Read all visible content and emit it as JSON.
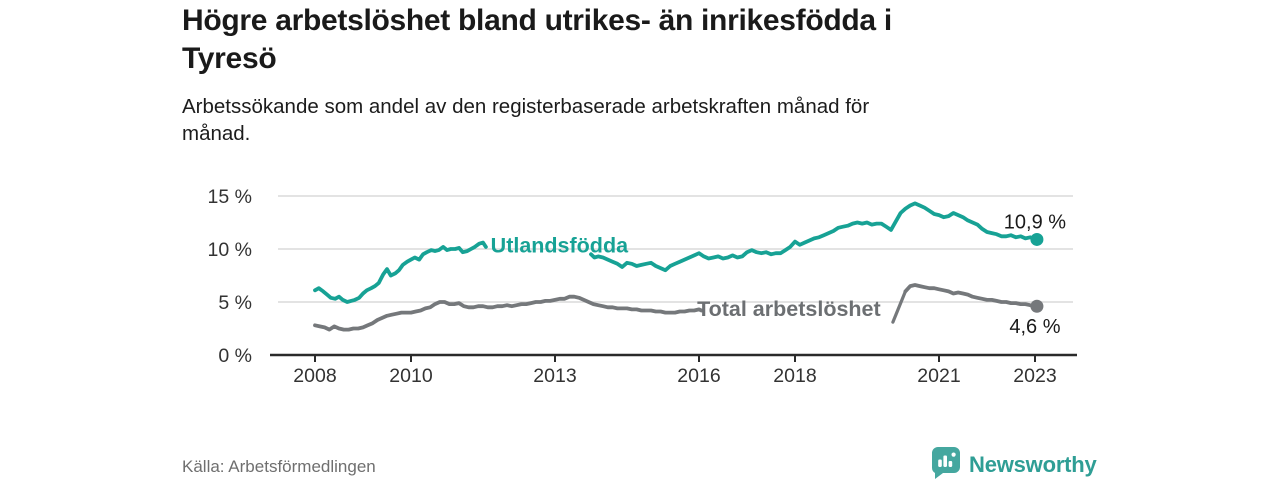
{
  "header": {
    "title": "Högre arbetslöshet bland utrikes- än inrikesfödda i\nTyresö",
    "subtitle": "Arbetssökande som andel av den registerbaserade arbetskraften månad för\nmånad."
  },
  "footer": {
    "source": "Källa: Arbetsförmedlingen",
    "brand_name": "Newsworthy",
    "brand_icon": "newsworthy-speech-bubble-bar-chart-icon"
  },
  "colors": {
    "accent_teal": "#17a295",
    "line_gray": "#75787b",
    "series_label_gray": "#6c6f72",
    "grid": "#dadada",
    "axis": "#2a2a2a",
    "tick_text": "#333333",
    "annotation_text": "#1a1a1a",
    "brand_teal": "#2f9e95",
    "brand_icon_teal": "#45a79f"
  },
  "chart_data": {
    "type": "line",
    "title": "Högre arbetslöshet bland utrikes- än inrikesfödda i Tyresö",
    "xlabel": "",
    "ylabel": "Arbetssökande som andel av den registerbaserade arbetskraften",
    "x_axis": {
      "tick_years": [
        2008,
        2010,
        2013,
        2016,
        2018,
        2021,
        2023
      ],
      "range": [
        2007.6,
        2023.9
      ]
    },
    "y_axis": {
      "tick_labels": [
        "0 %",
        "5 %",
        "10 %",
        "15 %"
      ],
      "tick_values": [
        0,
        5,
        10,
        15
      ],
      "range": [
        0,
        16.5
      ],
      "grid": true
    },
    "legend_position": "inline-labels-on-lines",
    "series": [
      {
        "name": "Utlandsfödda",
        "color": "#17a295",
        "end_label": "10,9 %",
        "end_value": 10.9,
        "label_at": {
          "year": 2011.66,
          "value": 10.35,
          "anchor": "start"
        },
        "label_connector": [],
        "segments": [
          [
            [
              2008.0,
              6.1
            ],
            [
              2008.08,
              6.3
            ],
            [
              2008.17,
              6.0
            ],
            [
              2008.25,
              5.7
            ],
            [
              2008.33,
              5.4
            ],
            [
              2008.42,
              5.3
            ],
            [
              2008.5,
              5.5
            ],
            [
              2008.58,
              5.2
            ],
            [
              2008.67,
              5.0
            ],
            [
              2008.75,
              5.1
            ],
            [
              2008.83,
              5.2
            ],
            [
              2008.92,
              5.4
            ],
            [
              2009.0,
              5.8
            ],
            [
              2009.08,
              6.1
            ],
            [
              2009.17,
              6.3
            ],
            [
              2009.25,
              6.5
            ],
            [
              2009.33,
              6.8
            ],
            [
              2009.42,
              7.6
            ],
            [
              2009.5,
              8.1
            ],
            [
              2009.58,
              7.5
            ],
            [
              2009.67,
              7.7
            ],
            [
              2009.75,
              8.0
            ],
            [
              2009.83,
              8.5
            ],
            [
              2009.92,
              8.8
            ],
            [
              2010.0,
              9.0
            ],
            [
              2010.08,
              9.2
            ],
            [
              2010.17,
              9.0
            ],
            [
              2010.25,
              9.5
            ],
            [
              2010.33,
              9.7
            ],
            [
              2010.42,
              9.9
            ],
            [
              2010.5,
              9.8
            ],
            [
              2010.58,
              9.9
            ],
            [
              2010.67,
              10.2
            ],
            [
              2010.75,
              9.9
            ],
            [
              2010.83,
              10.0
            ],
            [
              2010.92,
              10.0
            ],
            [
              2011.0,
              10.1
            ],
            [
              2011.08,
              9.7
            ],
            [
              2011.17,
              9.8
            ],
            [
              2011.25,
              10.0
            ],
            [
              2011.33,
              10.2
            ],
            [
              2011.42,
              10.5
            ],
            [
              2011.5,
              10.6
            ],
            [
              2011.56,
              10.2
            ]
          ],
          [
            [
              2013.75,
              9.5
            ],
            [
              2013.82,
              9.2
            ],
            [
              2013.9,
              9.3
            ],
            [
              2014.0,
              9.2
            ],
            [
              2014.1,
              9.0
            ],
            [
              2014.2,
              8.8
            ],
            [
              2014.3,
              8.6
            ],
            [
              2014.4,
              8.3
            ],
            [
              2014.5,
              8.7
            ],
            [
              2014.6,
              8.6
            ],
            [
              2014.7,
              8.4
            ],
            [
              2014.8,
              8.5
            ],
            [
              2014.9,
              8.6
            ],
            [
              2015.0,
              8.7
            ],
            [
              2015.1,
              8.4
            ],
            [
              2015.2,
              8.2
            ],
            [
              2015.3,
              8.0
            ],
            [
              2015.4,
              8.4
            ],
            [
              2015.5,
              8.6
            ],
            [
              2015.6,
              8.8
            ],
            [
              2015.7,
              9.0
            ],
            [
              2015.8,
              9.2
            ],
            [
              2015.9,
              9.4
            ],
            [
              2016.0,
              9.6
            ],
            [
              2016.1,
              9.3
            ],
            [
              2016.2,
              9.1
            ],
            [
              2016.3,
              9.2
            ],
            [
              2016.4,
              9.3
            ],
            [
              2016.5,
              9.1
            ],
            [
              2016.6,
              9.2
            ],
            [
              2016.7,
              9.4
            ],
            [
              2016.8,
              9.2
            ],
            [
              2016.9,
              9.3
            ],
            [
              2017.0,
              9.7
            ],
            [
              2017.1,
              9.9
            ],
            [
              2017.2,
              9.7
            ],
            [
              2017.3,
              9.6
            ],
            [
              2017.4,
              9.7
            ],
            [
              2017.5,
              9.5
            ],
            [
              2017.6,
              9.6
            ],
            [
              2017.7,
              9.6
            ],
            [
              2017.8,
              9.9
            ],
            [
              2017.9,
              10.2
            ],
            [
              2018.0,
              10.7
            ],
            [
              2018.1,
              10.4
            ],
            [
              2018.2,
              10.6
            ],
            [
              2018.3,
              10.8
            ],
            [
              2018.4,
              11.0
            ],
            [
              2018.5,
              11.1
            ],
            [
              2018.6,
              11.3
            ],
            [
              2018.7,
              11.5
            ],
            [
              2018.8,
              11.7
            ],
            [
              2018.9,
              12.0
            ],
            [
              2019.0,
              12.1
            ],
            [
              2019.1,
              12.2
            ],
            [
              2019.2,
              12.4
            ],
            [
              2019.3,
              12.5
            ],
            [
              2019.4,
              12.4
            ],
            [
              2019.5,
              12.5
            ],
            [
              2019.6,
              12.3
            ],
            [
              2019.7,
              12.4
            ],
            [
              2019.8,
              12.4
            ],
            [
              2019.9,
              12.1
            ],
            [
              2020.0,
              11.8
            ],
            [
              2020.1,
              12.6
            ],
            [
              2020.2,
              13.4
            ],
            [
              2020.3,
              13.8
            ],
            [
              2020.4,
              14.1
            ],
            [
              2020.5,
              14.3
            ],
            [
              2020.6,
              14.1
            ],
            [
              2020.7,
              13.9
            ],
            [
              2020.8,
              13.6
            ],
            [
              2020.9,
              13.3
            ],
            [
              2021.0,
              13.2
            ],
            [
              2021.1,
              13.0
            ],
            [
              2021.2,
              13.1
            ],
            [
              2021.3,
              13.4
            ],
            [
              2021.4,
              13.2
            ],
            [
              2021.5,
              13.0
            ],
            [
              2021.6,
              12.7
            ],
            [
              2021.7,
              12.5
            ],
            [
              2021.8,
              12.3
            ],
            [
              2021.9,
              11.9
            ],
            [
              2022.0,
              11.6
            ],
            [
              2022.1,
              11.5
            ],
            [
              2022.2,
              11.4
            ],
            [
              2022.3,
              11.2
            ],
            [
              2022.4,
              11.2
            ],
            [
              2022.5,
              11.3
            ],
            [
              2022.6,
              11.1
            ],
            [
              2022.7,
              11.2
            ],
            [
              2022.8,
              11.0
            ],
            [
              2022.9,
              11.1
            ],
            [
              2023.04,
              10.9
            ]
          ]
        ]
      },
      {
        "name": "Total arbetslöshet",
        "color": "#75787b",
        "end_label": "4,6 %",
        "end_value": 4.6,
        "label_at": {
          "year": 2015.96,
          "value": 4.35,
          "anchor": "start"
        },
        "label_connector": [
          [
            2020.04,
            3.1
          ],
          [
            2020.3,
            6.0
          ]
        ],
        "segments": [
          [
            [
              2008.0,
              2.8
            ],
            [
              2008.1,
              2.7
            ],
            [
              2008.2,
              2.6
            ],
            [
              2008.3,
              2.4
            ],
            [
              2008.4,
              2.7
            ],
            [
              2008.5,
              2.5
            ],
            [
              2008.6,
              2.4
            ],
            [
              2008.7,
              2.4
            ],
            [
              2008.8,
              2.5
            ],
            [
              2008.9,
              2.5
            ],
            [
              2009.0,
              2.6
            ],
            [
              2009.1,
              2.8
            ],
            [
              2009.2,
              3.0
            ],
            [
              2009.3,
              3.3
            ],
            [
              2009.4,
              3.5
            ],
            [
              2009.5,
              3.7
            ],
            [
              2009.6,
              3.8
            ],
            [
              2009.7,
              3.9
            ],
            [
              2009.8,
              4.0
            ],
            [
              2009.9,
              4.0
            ],
            [
              2010.0,
              4.0
            ],
            [
              2010.1,
              4.1
            ],
            [
              2010.2,
              4.2
            ],
            [
              2010.3,
              4.4
            ],
            [
              2010.4,
              4.5
            ],
            [
              2010.5,
              4.8
            ],
            [
              2010.6,
              5.0
            ],
            [
              2010.7,
              5.0
            ],
            [
              2010.8,
              4.8
            ],
            [
              2010.9,
              4.8
            ],
            [
              2011.0,
              4.9
            ],
            [
              2011.1,
              4.6
            ],
            [
              2011.2,
              4.5
            ],
            [
              2011.3,
              4.5
            ],
            [
              2011.4,
              4.6
            ],
            [
              2011.5,
              4.6
            ],
            [
              2011.6,
              4.5
            ],
            [
              2011.7,
              4.5
            ],
            [
              2011.8,
              4.6
            ],
            [
              2011.9,
              4.6
            ],
            [
              2012.0,
              4.7
            ],
            [
              2012.1,
              4.6
            ],
            [
              2012.2,
              4.7
            ],
            [
              2012.3,
              4.8
            ],
            [
              2012.4,
              4.8
            ],
            [
              2012.5,
              4.9
            ],
            [
              2012.6,
              5.0
            ],
            [
              2012.7,
              5.0
            ],
            [
              2012.8,
              5.1
            ],
            [
              2012.9,
              5.1
            ],
            [
              2013.0,
              5.2
            ],
            [
              2013.1,
              5.3
            ],
            [
              2013.2,
              5.3
            ],
            [
              2013.3,
              5.5
            ],
            [
              2013.4,
              5.5
            ],
            [
              2013.5,
              5.4
            ],
            [
              2013.6,
              5.2
            ],
            [
              2013.7,
              5.0
            ],
            [
              2013.8,
              4.8
            ],
            [
              2013.9,
              4.7
            ],
            [
              2014.0,
              4.6
            ],
            [
              2014.1,
              4.5
            ],
            [
              2014.2,
              4.5
            ],
            [
              2014.3,
              4.4
            ],
            [
              2014.4,
              4.4
            ],
            [
              2014.5,
              4.4
            ],
            [
              2014.6,
              4.3
            ],
            [
              2014.7,
              4.3
            ],
            [
              2014.8,
              4.2
            ],
            [
              2014.9,
              4.2
            ],
            [
              2015.0,
              4.2
            ],
            [
              2015.1,
              4.1
            ],
            [
              2015.2,
              4.1
            ],
            [
              2015.3,
              4.0
            ],
            [
              2015.4,
              4.0
            ],
            [
              2015.5,
              4.0
            ],
            [
              2015.6,
              4.1
            ],
            [
              2015.7,
              4.1
            ],
            [
              2015.8,
              4.2
            ],
            [
              2015.9,
              4.2
            ],
            [
              2016.0,
              4.3
            ],
            [
              2016.05,
              4.2
            ]
          ],
          [
            [
              2020.3,
              6.0
            ],
            [
              2020.4,
              6.5
            ],
            [
              2020.5,
              6.6
            ],
            [
              2020.6,
              6.5
            ],
            [
              2020.7,
              6.4
            ],
            [
              2020.8,
              6.3
            ],
            [
              2020.9,
              6.3
            ],
            [
              2021.0,
              6.2
            ],
            [
              2021.1,
              6.1
            ],
            [
              2021.2,
              6.0
            ],
            [
              2021.3,
              5.8
            ],
            [
              2021.4,
              5.9
            ],
            [
              2021.5,
              5.8
            ],
            [
              2021.6,
              5.7
            ],
            [
              2021.7,
              5.5
            ],
            [
              2021.8,
              5.4
            ],
            [
              2021.9,
              5.3
            ],
            [
              2022.0,
              5.2
            ],
            [
              2022.1,
              5.2
            ],
            [
              2022.2,
              5.1
            ],
            [
              2022.3,
              5.0
            ],
            [
              2022.4,
              5.0
            ],
            [
              2022.5,
              4.9
            ],
            [
              2022.6,
              4.9
            ],
            [
              2022.7,
              4.8
            ],
            [
              2022.8,
              4.8
            ],
            [
              2022.9,
              4.7
            ],
            [
              2023.04,
              4.6
            ]
          ]
        ]
      }
    ]
  }
}
